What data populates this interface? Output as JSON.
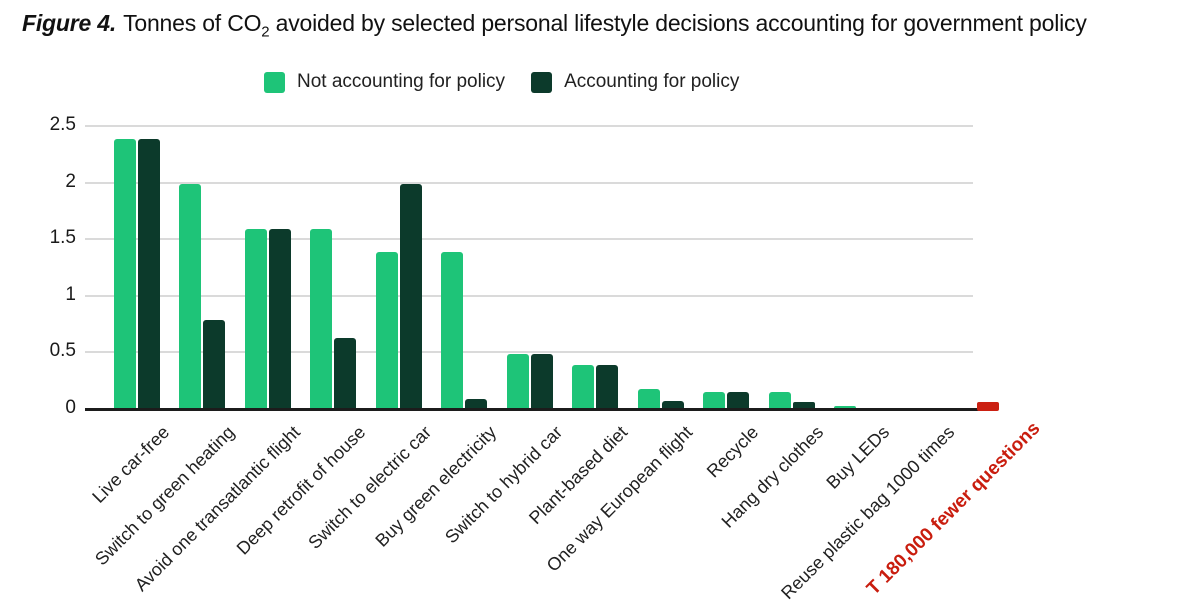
{
  "title": {
    "prefix": "Figure 4.",
    "main_before_sub": "Tonnes of CO",
    "sub": "2",
    "main_after_sub": " avoided by selected personal lifestyle decisions accounting for government policy"
  },
  "chart_data": {
    "type": "bar",
    "title": "Figure 4. Tonnes of CO2 avoided by selected personal lifestyle decisions accounting for government policy",
    "categories": [
      "Live car-free",
      "Switch to green heating",
      "Avoid one transatlantic flight",
      "Deep retrofit of house",
      "Switch to electric car",
      "Buy green electricity",
      "Switch to hybrid car",
      "Plant-based diet",
      "One way European flight",
      "Recycle",
      "Hang dry clothes",
      "Buy LEDs",
      "Reuse plastic bag 1000 times"
    ],
    "series": [
      {
        "name": "Not accounting for policy",
        "color": "#1ec478",
        "values": [
          2.38,
          1.98,
          1.58,
          1.58,
          1.38,
          1.38,
          0.48,
          0.38,
          0.17,
          0.14,
          0.14,
          0.02,
          0
        ]
      },
      {
        "name": "Accounting for policy",
        "color": "#0c3a2b",
        "values": [
          2.38,
          0.78,
          1.58,
          0.62,
          1.98,
          0.08,
          0.48,
          0.38,
          0.06,
          0.14,
          0.05,
          0,
          0
        ]
      }
    ],
    "annotation": {
      "label": "T 180,000 fewer questions",
      "value": 0.05,
      "bar_color": "#cb2012",
      "label_color": "#c91d0e"
    },
    "ylabel": "",
    "xlabel": "",
    "ylim": [
      0,
      2.5
    ],
    "yticks": [
      "0",
      "0.5",
      "1",
      "1.5",
      "2",
      "2.5"
    ],
    "grid": true,
    "legend_position": "top",
    "grid_color": "#dadada",
    "axis_color": "#1c1c1c"
  }
}
